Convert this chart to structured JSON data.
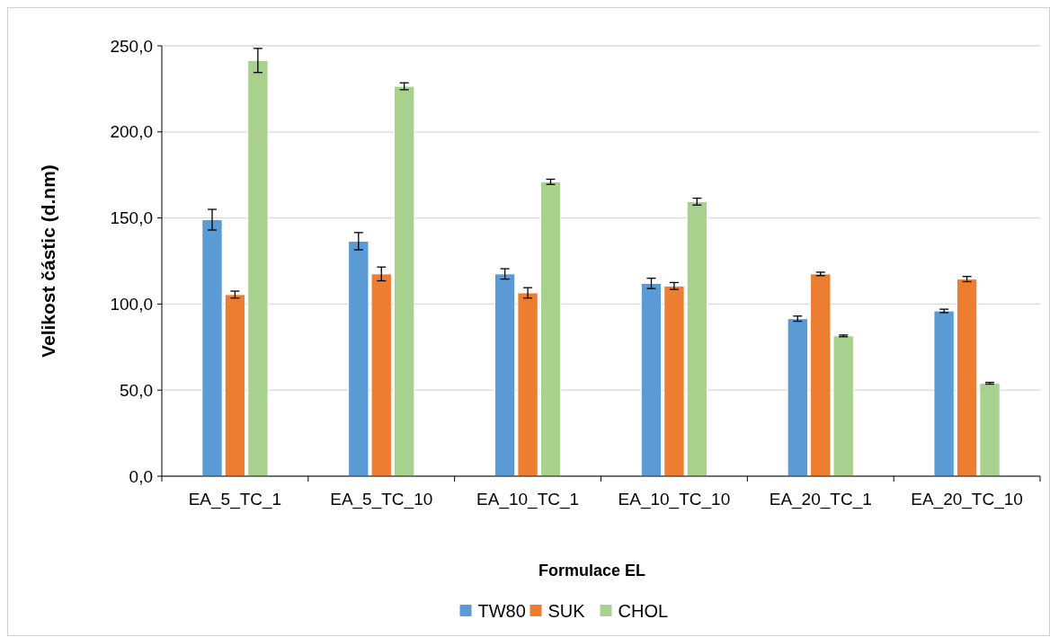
{
  "chart_data": {
    "type": "bar",
    "xlabel": "Formulace EL",
    "ylabel": "Velikost částic  (d.nm)",
    "categories": [
      "EA_5_TC_1",
      "EA_5_TC_10",
      "EA_10_TC_1",
      "EA_10_TC_10",
      "EA_20_TC_1",
      "EA_20_TC_10"
    ],
    "series": [
      {
        "name": "TW80",
        "color": "#5b9bd5",
        "values": [
          149,
          136.5,
          117.5,
          112,
          91.5,
          96
        ],
        "errors": [
          6,
          5,
          3,
          3,
          1.5,
          1
        ]
      },
      {
        "name": "SUK",
        "color": "#ed7d31",
        "values": [
          105.5,
          117.5,
          106.5,
          110.5,
          117.5,
          114.5
        ],
        "errors": [
          2,
          4,
          3,
          2,
          1,
          1.5
        ]
      },
      {
        "name": "CHOL",
        "color": "#a9d18e",
        "values": [
          241.5,
          226.5,
          171,
          159.5,
          81.5,
          54
        ],
        "errors": [
          7,
          2,
          1.5,
          2,
          0.5,
          0.5
        ]
      }
    ],
    "ylim": [
      0,
      250
    ],
    "yticks": [
      {
        "value": 0,
        "label": "0,0"
      },
      {
        "value": 50,
        "label": "50,0"
      },
      {
        "value": 100,
        "label": "100,0"
      },
      {
        "value": 150,
        "label": "150,0"
      },
      {
        "value": 200,
        "label": "200,0"
      },
      {
        "value": 250,
        "label": "250,0"
      }
    ],
    "grid": "y",
    "legend": "bottom"
  }
}
